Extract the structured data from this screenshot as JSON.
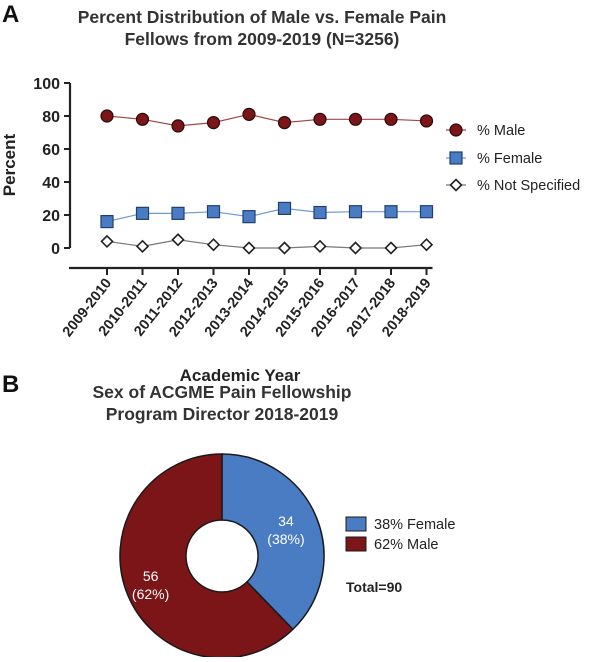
{
  "panel_a": {
    "letter": "A",
    "title_line1": "Percent Distribution of Male vs. Female Pain",
    "title_line2": "Fellows from 2009-2019 (N=3256)"
  },
  "panel_b": {
    "letter": "B",
    "title_line1": "Sex of ACGME Pain Fellowship",
    "title_line2": "Program Director 2018-2019",
    "total_label": "Total=90"
  },
  "colors": {
    "male": "#7b1518",
    "female": "#4a7cc4",
    "not_specified_fill": "#ffffff",
    "line_male": "#a04848",
    "line_female": "#6f9ad6",
    "line_not_specified": "#777777",
    "axis": "#222222"
  },
  "chart_data": [
    {
      "type": "line",
      "title": "Percent Distribution of Male vs. Female Pain Fellows from 2009-2019 (N=3256)",
      "xlabel": "Academic Year",
      "ylabel": "Percent",
      "ylim": [
        0,
        100
      ],
      "yticks": [
        0,
        20,
        40,
        60,
        80,
        100
      ],
      "grid": false,
      "legend_position": "right",
      "categories": [
        "2009-2010",
        "2010-2011",
        "2011-2012",
        "2012-2013",
        "2013-2014",
        "2014-2015",
        "2015-2016",
        "2016-2017",
        "2017-2018",
        "2018-2019"
      ],
      "series": [
        {
          "name": "% Male",
          "marker": "circle",
          "values": [
            80,
            78,
            74,
            76,
            81,
            76,
            78,
            78,
            78,
            77
          ]
        },
        {
          "name": "% Female",
          "marker": "square",
          "values": [
            16,
            21,
            21,
            22,
            19,
            24,
            21.5,
            22,
            22,
            22
          ]
        },
        {
          "name": "% Not Specified",
          "marker": "diamond",
          "values": [
            4,
            1,
            5,
            2,
            0,
            0,
            1,
            0,
            0,
            2
          ]
        }
      ]
    },
    {
      "type": "pie",
      "style": "donut",
      "title": "Sex of ACGME Pain Fellowship Program Director 2018-2019",
      "slices": [
        {
          "name": "Female",
          "value": 34,
          "percent": 38,
          "label_value": "34",
          "label_pct": "(38%)",
          "legend": "38%  Female"
        },
        {
          "name": "Male",
          "value": 56,
          "percent": 62,
          "label_value": "56",
          "label_pct": "(62%)",
          "legend": "62%  Male"
        }
      ],
      "total": 90
    }
  ]
}
